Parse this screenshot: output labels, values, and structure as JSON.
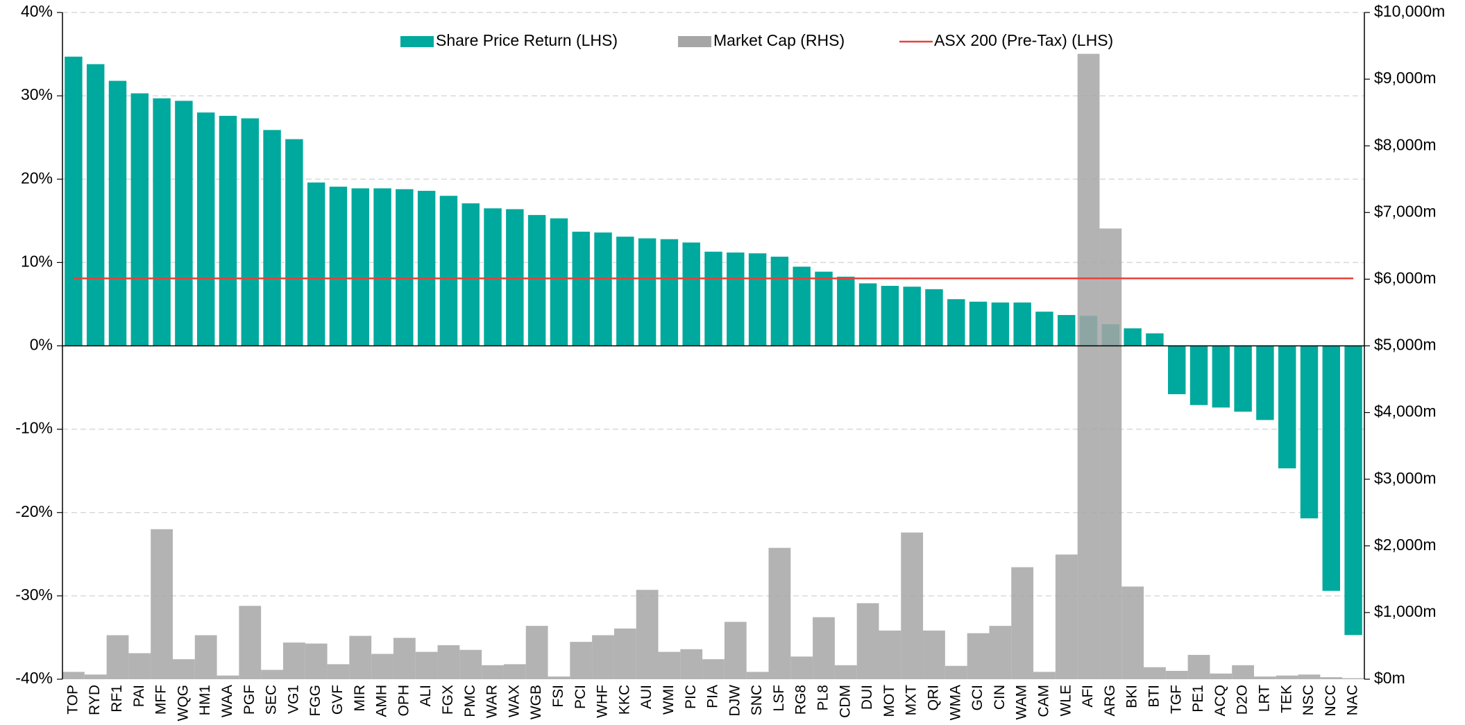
{
  "chart_data": {
    "type": "bar",
    "categories": [
      "TOP",
      "RYD",
      "RF1",
      "PAI",
      "MFF",
      "WQG",
      "HM1",
      "WAA",
      "PGF",
      "SEC",
      "VG1",
      "FGG",
      "GVF",
      "MIR",
      "AMH",
      "OPH",
      "ALI",
      "FGX",
      "PMC",
      "WAR",
      "WAX",
      "WGB",
      "FSI",
      "PCI",
      "WHF",
      "KKC",
      "AUI",
      "WMI",
      "PIC",
      "PIA",
      "DJW",
      "SNC",
      "LSF",
      "RG8",
      "PL8",
      "CDM",
      "DUI",
      "MOT",
      "MXT",
      "QRI",
      "WMA",
      "GCI",
      "CIN",
      "WAM",
      "CAM",
      "WLE",
      "AFI",
      "ARG",
      "BKI",
      "BTI",
      "TGF",
      "PE1",
      "ACQ",
      "D2O",
      "LRT",
      "TEK",
      "NSC",
      "NCC",
      "NAC"
    ],
    "series": [
      {
        "name": "Share Price Return (LHS)",
        "color": "#00a99d",
        "axis": "y",
        "values": [
          34.7,
          33.8,
          31.8,
          30.3,
          29.7,
          29.4,
          28.0,
          27.6,
          27.3,
          25.9,
          24.8,
          19.6,
          19.1,
          18.9,
          18.9,
          18.8,
          18.6,
          18.0,
          17.1,
          16.5,
          16.4,
          15.7,
          15.3,
          13.7,
          13.6,
          13.1,
          12.9,
          12.8,
          12.4,
          11.3,
          11.2,
          11.1,
          10.7,
          9.5,
          8.9,
          8.3,
          7.5,
          7.2,
          7.1,
          6.8,
          5.6,
          5.3,
          5.2,
          5.2,
          4.1,
          3.7,
          3.6,
          2.6,
          2.1,
          1.5,
          -5.8,
          -7.1,
          -7.4,
          -7.9,
          -8.9,
          -14.7,
          -20.7,
          -29.4,
          -34.7
        ]
      },
      {
        "name": "Market Cap (RHS)",
        "color": "#a6a6a6",
        "axis": "y2",
        "values": [
          110,
          70,
          660,
          390,
          2250,
          300,
          660,
          55,
          1100,
          140,
          550,
          535,
          225,
          650,
          380,
          620,
          410,
          510,
          440,
          210,
          225,
          800,
          40,
          560,
          660,
          760,
          1340,
          410,
          450,
          300,
          860,
          110,
          1970,
          340,
          930,
          210,
          1140,
          730,
          2200,
          730,
          200,
          690,
          800,
          1680,
          110,
          1870,
          9380,
          6760,
          1390,
          180,
          125,
          365,
          85,
          210,
          40,
          55,
          70,
          30,
          15
        ]
      }
    ],
    "reference_line": {
      "name": "ASX 200 (Pre-Tax) (LHS)",
      "color": "#e8413a",
      "value": 8.1
    },
    "ylim": [
      -40,
      40
    ],
    "yticks": [
      {
        "value": -40,
        "label": "-40%"
      },
      {
        "value": -30,
        "label": "-30%"
      },
      {
        "value": -20,
        "label": "-20%"
      },
      {
        "value": -10,
        "label": "-10%"
      },
      {
        "value": 0,
        "label": "0%"
      },
      {
        "value": 10,
        "label": "10%"
      },
      {
        "value": 20,
        "label": "20%"
      },
      {
        "value": 30,
        "label": "30%"
      },
      {
        "value": 40,
        "label": "40%"
      }
    ],
    "y2lim": [
      0,
      10000
    ],
    "y2ticks": [
      {
        "value": 0,
        "label": "$0m"
      },
      {
        "value": 1000,
        "label": "$1,000m"
      },
      {
        "value": 2000,
        "label": "$2,000m"
      },
      {
        "value": 3000,
        "label": "$3,000m"
      },
      {
        "value": 4000,
        "label": "$4,000m"
      },
      {
        "value": 5000,
        "label": "$5,000m"
      },
      {
        "value": 6000,
        "label": "$6,000m"
      },
      {
        "value": 7000,
        "label": "$7,000m"
      },
      {
        "value": 8000,
        "label": "$8,000m"
      },
      {
        "value": 9000,
        "label": "$9,000m"
      },
      {
        "value": 10000,
        "label": "$10,000m"
      }
    ],
    "grid": true,
    "legend": "top"
  }
}
